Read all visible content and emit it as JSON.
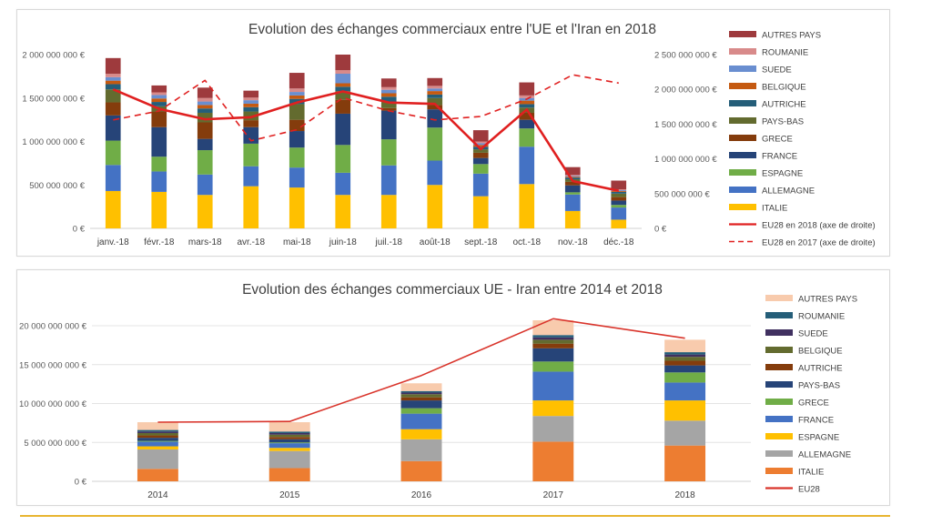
{
  "page": {
    "rule_color": "#e8b530"
  },
  "chart_data": [
    {
      "type": "bar",
      "stacked": true,
      "title": "Evolution des échanges commerciaux entre l'UE et l'Iran en 2018",
      "categories": [
        "janv.-18",
        "févr.-18",
        "mars-18",
        "avr.-18",
        "mai-18",
        "juin-18",
        "juil.-18",
        "août-18",
        "sept.-18",
        "oct.-18",
        "nov.-18",
        "déc.-18"
      ],
      "y_left": {
        "min": 0,
        "max": 2000000000,
        "ticks": [
          "0 €",
          "500 000 000 €",
          "1 000 000 000 €",
          "1 500 000 000 €",
          "2 000 000 000 €"
        ]
      },
      "y_right": {
        "min": 0,
        "max": 2500000000,
        "ticks": [
          "0 €",
          "500 000 000 €",
          "1 000 000 000 €",
          "1 500 000 000 €",
          "2 000 000 000 €",
          "2 500 000 000 €"
        ]
      },
      "series": [
        {
          "name": "ITALIE",
          "color": "#ffc000",
          "values": [
            430000000,
            420000000,
            385000000,
            485000000,
            470000000,
            385000000,
            385000000,
            500000000,
            370000000,
            510000000,
            200000000,
            100000000
          ]
        },
        {
          "name": "ALLEMAGNE",
          "color": "#4472c4",
          "values": [
            300000000,
            235000000,
            235000000,
            230000000,
            230000000,
            255000000,
            340000000,
            280000000,
            260000000,
            430000000,
            190000000,
            140000000
          ]
        },
        {
          "name": "ESPAGNE",
          "color": "#70ad47",
          "values": [
            280000000,
            170000000,
            280000000,
            260000000,
            230000000,
            320000000,
            300000000,
            380000000,
            110000000,
            210000000,
            25000000,
            30000000
          ]
        },
        {
          "name": "FRANCE",
          "color": "#264478",
          "values": [
            290000000,
            340000000,
            130000000,
            190000000,
            190000000,
            360000000,
            330000000,
            210000000,
            70000000,
            100000000,
            80000000,
            50000000
          ]
        },
        {
          "name": "GRECE",
          "color": "#843c0c",
          "values": [
            150000000,
            180000000,
            190000000,
            80000000,
            130000000,
            160000000,
            30000000,
            50000000,
            60000000,
            80000000,
            40000000,
            40000000
          ]
        },
        {
          "name": "PAYS-BAS",
          "color": "#636b2f",
          "values": [
            150000000,
            60000000,
            110000000,
            100000000,
            180000000,
            100000000,
            70000000,
            80000000,
            40000000,
            60000000,
            30000000,
            40000000
          ]
        },
        {
          "name": "AUTRICHE",
          "color": "#255e79",
          "values": [
            60000000,
            50000000,
            50000000,
            50000000,
            60000000,
            50000000,
            60000000,
            40000000,
            30000000,
            40000000,
            20000000,
            20000000
          ]
        },
        {
          "name": "BELGIQUE",
          "color": "#c55a11",
          "values": [
            40000000,
            40000000,
            40000000,
            40000000,
            40000000,
            40000000,
            40000000,
            40000000,
            20000000,
            40000000,
            10000000,
            10000000
          ]
        },
        {
          "name": "SUEDE",
          "color": "#698ed0",
          "values": [
            40000000,
            40000000,
            40000000,
            40000000,
            40000000,
            110000000,
            40000000,
            30000000,
            20000000,
            30000000,
            10000000,
            10000000
          ]
        },
        {
          "name": "ROUMANIE",
          "color": "#d88a8a",
          "values": [
            40000000,
            30000000,
            40000000,
            30000000,
            40000000,
            40000000,
            30000000,
            30000000,
            20000000,
            30000000,
            10000000,
            10000000
          ]
        },
        {
          "name": "AUTRES PAYS",
          "color": "#9e3a3d",
          "values": [
            180000000,
            80000000,
            120000000,
            80000000,
            180000000,
            180000000,
            100000000,
            90000000,
            130000000,
            150000000,
            90000000,
            100000000
          ]
        }
      ],
      "line_series": [
        {
          "name": "EU28 en 2018 (axe de droite)",
          "color": "#e02020",
          "dashed": false,
          "axis": "right",
          "values": [
            2000000000,
            1720000000,
            1570000000,
            1600000000,
            1810000000,
            1970000000,
            1810000000,
            1790000000,
            1140000000,
            1710000000,
            680000000,
            540000000
          ]
        },
        {
          "name": "EU28 en 2017 (axe de droite)",
          "color": "#e02020",
          "dashed": true,
          "axis": "right",
          "values": [
            1560000000,
            1690000000,
            2130000000,
            1260000000,
            1420000000,
            1880000000,
            1690000000,
            1560000000,
            1610000000,
            1860000000,
            2210000000,
            2090000000
          ]
        }
      ],
      "legend_order": [
        "AUTRES PAYS",
        "ROUMANIE",
        "SUEDE",
        "BELGIQUE",
        "AUTRICHE",
        "PAYS-BAS",
        "GRECE",
        "FRANCE",
        "ESPAGNE",
        "ALLEMAGNE",
        "ITALIE",
        "EU28 en 2018 (axe de droite)",
        "EU28 en 2017 (axe de droite)"
      ],
      "legend_position": "right"
    },
    {
      "type": "bar",
      "stacked": true,
      "title": "Evolution des échanges commerciaux UE - Iran entre 2014 et 2018",
      "categories": [
        "2014",
        "2015",
        "2016",
        "2017",
        "2018"
      ],
      "y_left": {
        "min": 0,
        "max": 20000000000,
        "ticks": [
          "0 €",
          "5 000 000 000 €",
          "10 000 000 000 €",
          "15 000 000 000 €",
          "20 000 000 000 €"
        ]
      },
      "series": [
        {
          "name": "ITALIE",
          "color": "#ed7d31",
          "values": [
            1600000000,
            1700000000,
            2600000000,
            5100000000,
            4600000000
          ]
        },
        {
          "name": "ALLEMAGNE",
          "color": "#a5a5a5",
          "values": [
            2500000000,
            2200000000,
            2800000000,
            3300000000,
            3200000000
          ]
        },
        {
          "name": "ESPAGNE",
          "color": "#ffc000",
          "values": [
            400000000,
            400000000,
            1300000000,
            2000000000,
            2600000000
          ]
        },
        {
          "name": "FRANCE",
          "color": "#4472c4",
          "values": [
            600000000,
            600000000,
            2000000000,
            3700000000,
            2300000000
          ]
        },
        {
          "name": "GRECE",
          "color": "#70ad47",
          "values": [
            100000000,
            100000000,
            700000000,
            1300000000,
            1300000000
          ]
        },
        {
          "name": "PAYS-BAS",
          "color": "#264478",
          "values": [
            400000000,
            400000000,
            1000000000,
            1700000000,
            900000000
          ]
        },
        {
          "name": "AUTRICHE",
          "color": "#843c0c",
          "values": [
            300000000,
            300000000,
            400000000,
            600000000,
            600000000
          ]
        },
        {
          "name": "BELGIQUE",
          "color": "#636b2f",
          "values": [
            300000000,
            300000000,
            400000000,
            500000000,
            500000000
          ]
        },
        {
          "name": "SUEDE",
          "color": "#403060",
          "values": [
            200000000,
            200000000,
            200000000,
            300000000,
            300000000
          ]
        },
        {
          "name": "ROUMANIE",
          "color": "#255e79",
          "values": [
            200000000,
            200000000,
            200000000,
            300000000,
            300000000
          ]
        },
        {
          "name": "AUTRES PAYS",
          "color": "#f8cbad",
          "values": [
            1000000000,
            1200000000,
            1000000000,
            1900000000,
            1600000000
          ]
        }
      ],
      "line_series": [
        {
          "name": "EU28",
          "color": "#d9342b",
          "dashed": false,
          "axis": "left",
          "values": [
            7600000000,
            7700000000,
            13600000000,
            20900000000,
            18400000000
          ]
        }
      ],
      "legend_order": [
        "AUTRES PAYS",
        "ROUMANIE",
        "SUEDE",
        "BELGIQUE",
        "AUTRICHE",
        "PAYS-BAS",
        "GRECE",
        "FRANCE",
        "ESPAGNE",
        "ALLEMAGNE",
        "ITALIE",
        "EU28"
      ],
      "legend_position": "right"
    }
  ]
}
